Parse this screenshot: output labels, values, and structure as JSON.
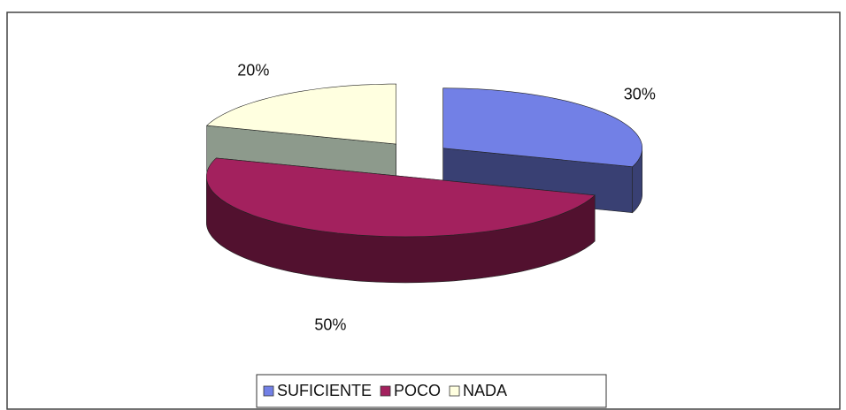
{
  "chart_data": {
    "type": "pie3d",
    "categories": [
      "SUFICIENTE",
      "POCO",
      "NADA"
    ],
    "values": [
      30,
      50,
      20
    ],
    "value_labels": [
      "30%",
      "50%",
      "20%"
    ],
    "colors": [
      "#7280e6",
      "#a3215e",
      "#ffffe0"
    ],
    "legend": "bottom"
  }
}
